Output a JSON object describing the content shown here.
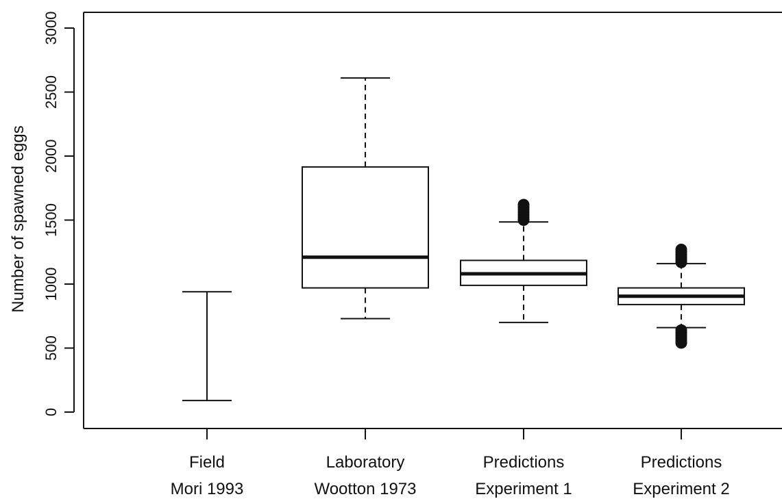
{
  "chart_data": {
    "type": "box",
    "title": "",
    "xlabel": "",
    "ylabel": "Number of spawned eggs",
    "ylim": [
      -50,
      3060
    ],
    "yticks": [
      0,
      500,
      1000,
      1500,
      2000,
      2500,
      3000
    ],
    "ytick_labels": [
      "0",
      "500",
      "1000",
      "1500",
      "2000",
      "2500",
      "3000"
    ],
    "grid": false,
    "legend": "none",
    "categories": [
      {
        "line1": "Field",
        "line2": "Mori  1993"
      },
      {
        "line1": "Laboratory",
        "line2": "Wootton  1973"
      },
      {
        "line1": "Predictions",
        "line2": "Experiment 1"
      },
      {
        "line1": "Predictions",
        "line2": "Experiment 2"
      }
    ],
    "boxes": [
      {
        "kind": "range",
        "whisker_low": 90,
        "whisker_high": 940,
        "outliers": []
      },
      {
        "kind": "box",
        "whisker_low": 730,
        "q1": 970,
        "median": 1210,
        "q3": 1915,
        "whisker_high": 2610,
        "outliers": []
      },
      {
        "kind": "box",
        "whisker_low": 700,
        "q1": 990,
        "median": 1080,
        "q3": 1185,
        "whisker_high": 1485,
        "outliers": [
          1500,
          1520,
          1540,
          1560,
          1580,
          1600,
          1620
        ]
      },
      {
        "kind": "box",
        "whisker_low": 660,
        "q1": 840,
        "median": 905,
        "q3": 970,
        "whisker_high": 1160,
        "outliers": [
          540,
          560,
          580,
          600,
          620,
          640,
          1170,
          1190,
          1210,
          1230,
          1250,
          1270
        ]
      }
    ],
    "colors": {
      "line": "#111111",
      "background": "#ffffff"
    }
  }
}
